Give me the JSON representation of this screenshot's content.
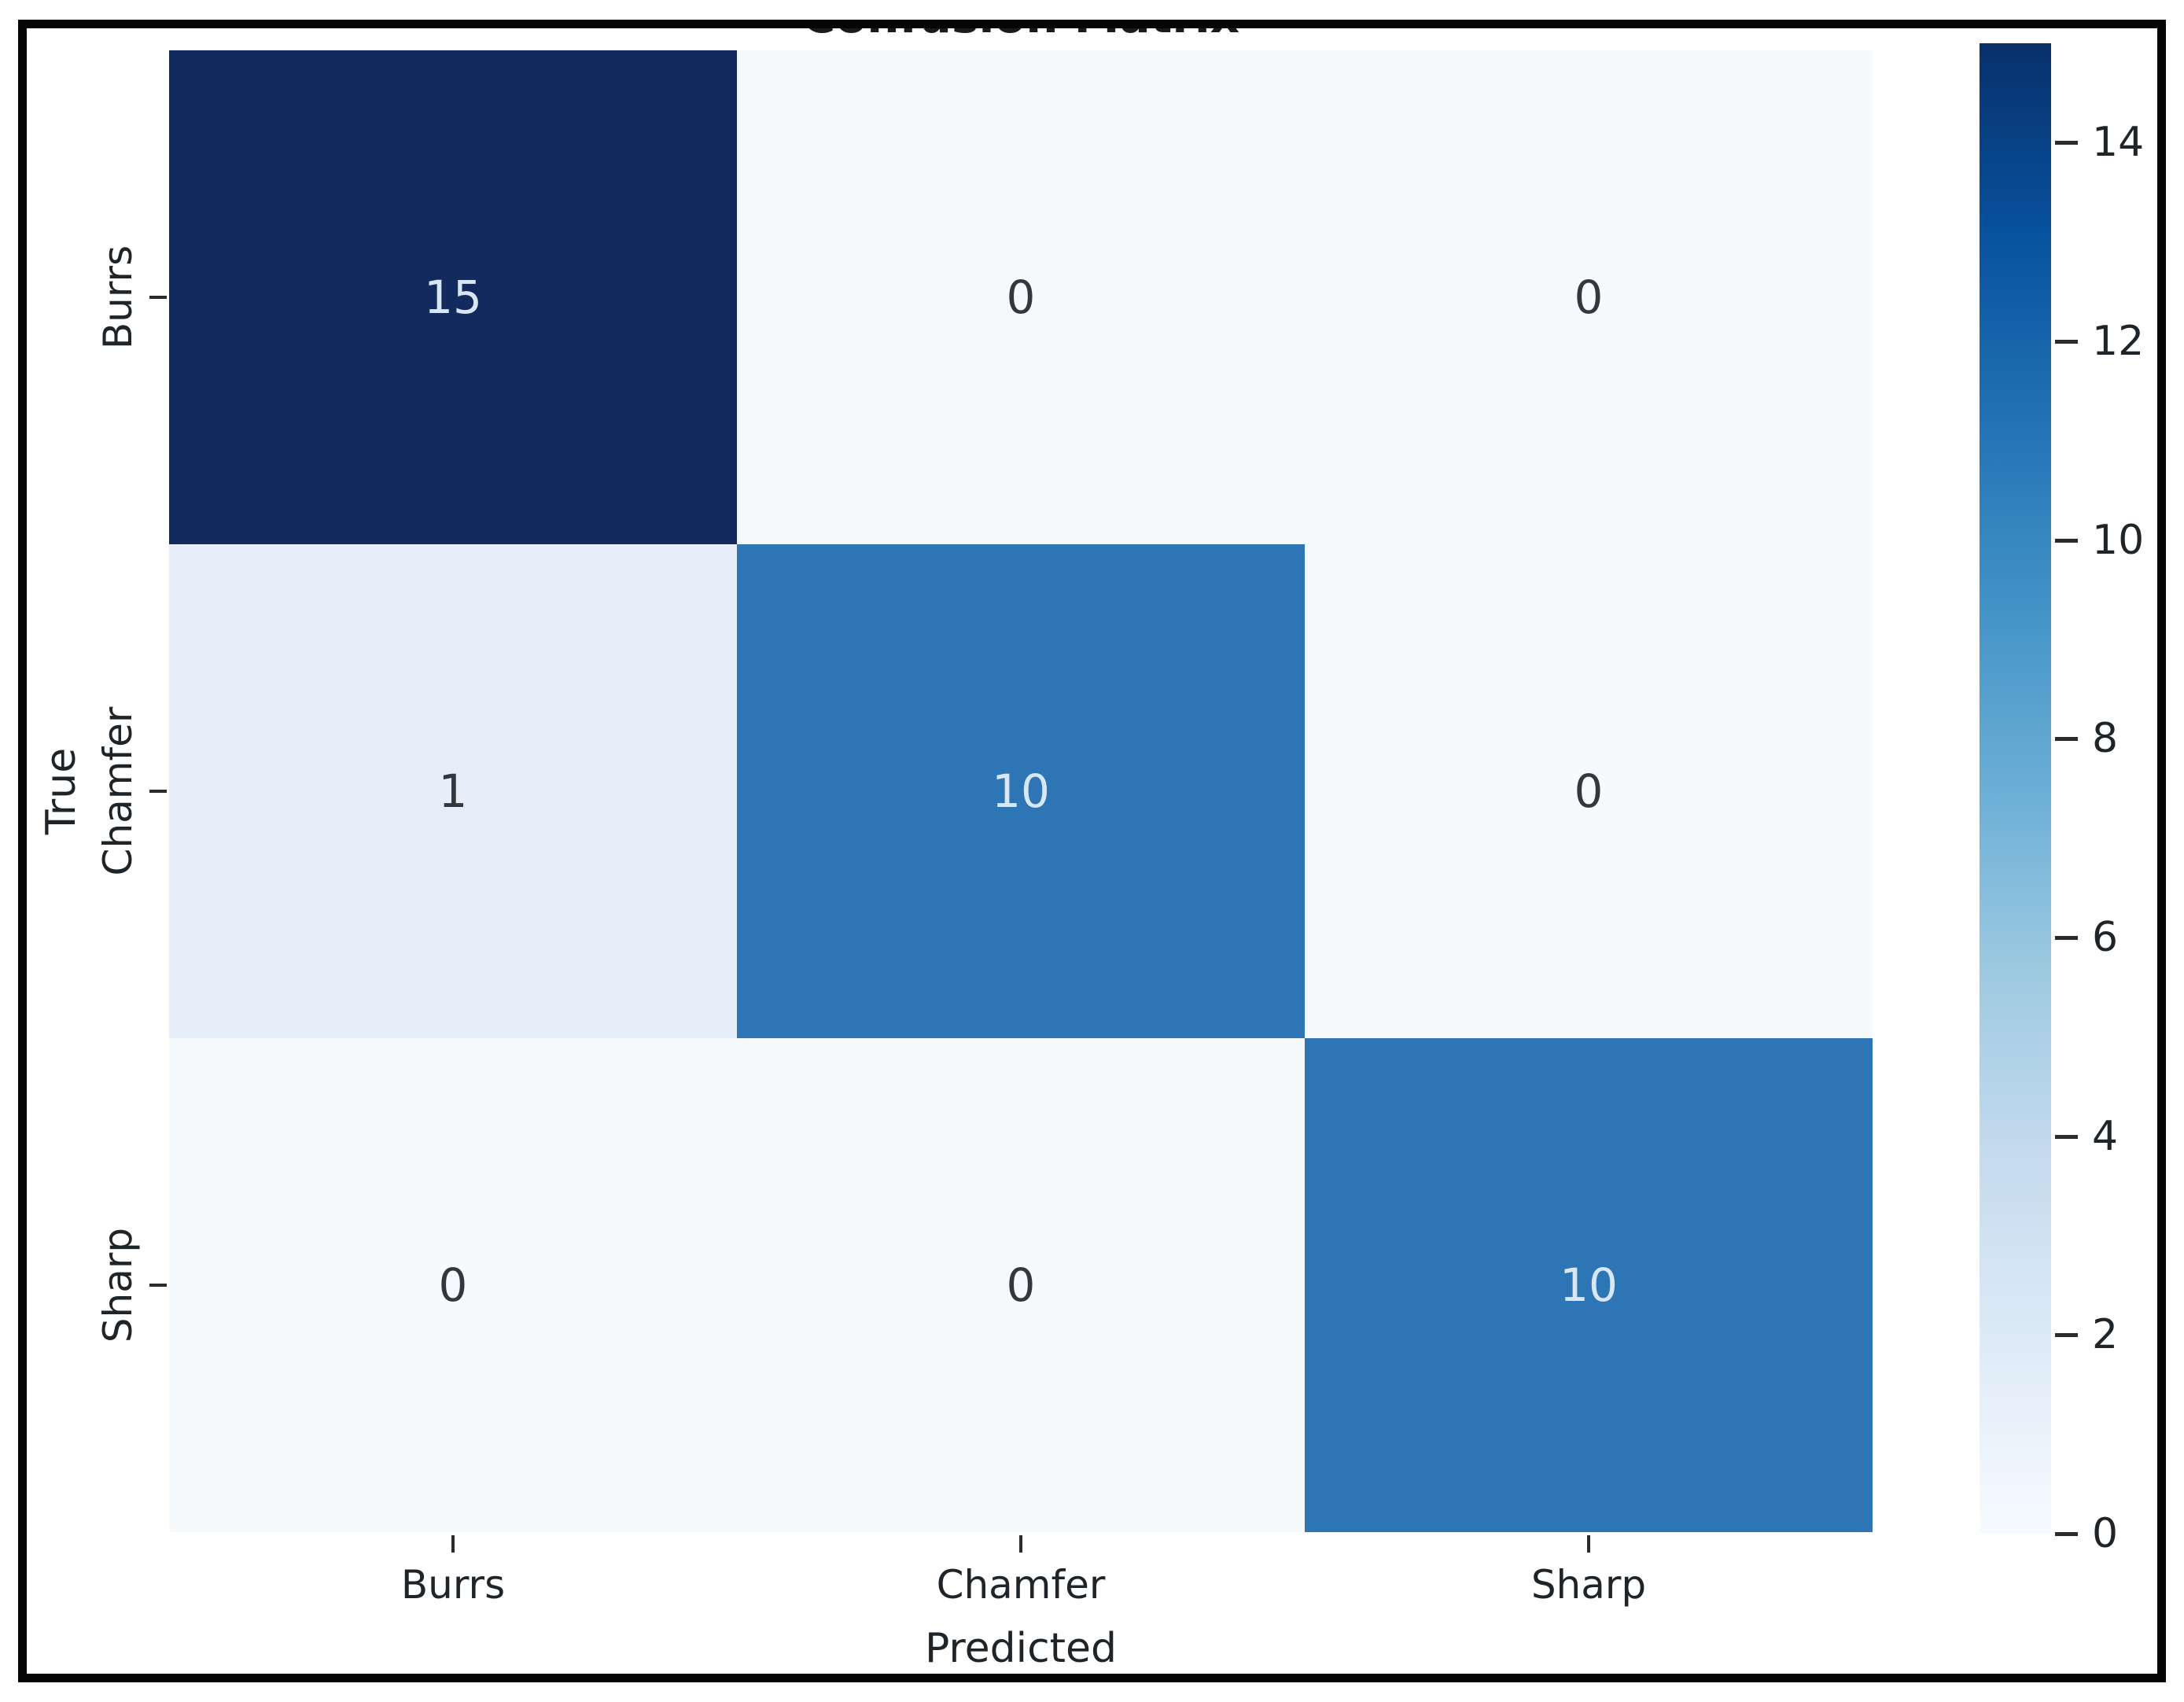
{
  "figure": {
    "title": "Confusion Matrix",
    "xlabel": "Predicted",
    "ylabel": "True"
  },
  "chart_data": {
    "type": "heatmap",
    "title": "Confusion Matrix",
    "xlabel": "Predicted",
    "ylabel": "True",
    "x_categories": [
      "Burrs",
      "Chamfer",
      "Sharp"
    ],
    "y_categories": [
      "Burrs",
      "Chamfer",
      "Sharp"
    ],
    "matrix": [
      [
        15,
        0,
        0
      ],
      [
        1,
        10,
        0
      ],
      [
        0,
        0,
        10
      ]
    ],
    "vmin": 0,
    "vmax": 15,
    "colormap": "Blues",
    "annotations": true,
    "colorbar_ticks": [
      0,
      2,
      4,
      6,
      8,
      10,
      12,
      14
    ],
    "colorbar_position": "right",
    "grid": false,
    "legend_position": "none"
  },
  "colors": {
    "cell_colors": [
      [
        "#122a5e",
        "#f7fafd",
        "#f7fafd"
      ],
      [
        "#e6eef9",
        "#2e75b5",
        "#f7fafd"
      ],
      [
        "#f7fafd",
        "#f7fafd",
        "#2e75b5"
      ]
    ],
    "annotation_light": "#d8e7f5",
    "annotation_dark": "#32383e",
    "axis_text": "#1f2428",
    "frame_border": "#050505",
    "blues_gradient_top_to_bottom": [
      "#08306b",
      "#08519c",
      "#2171b5",
      "#4292c6",
      "#6baed6",
      "#9ecae1",
      "#c6dbef",
      "#deebf7",
      "#f7fbff"
    ]
  }
}
